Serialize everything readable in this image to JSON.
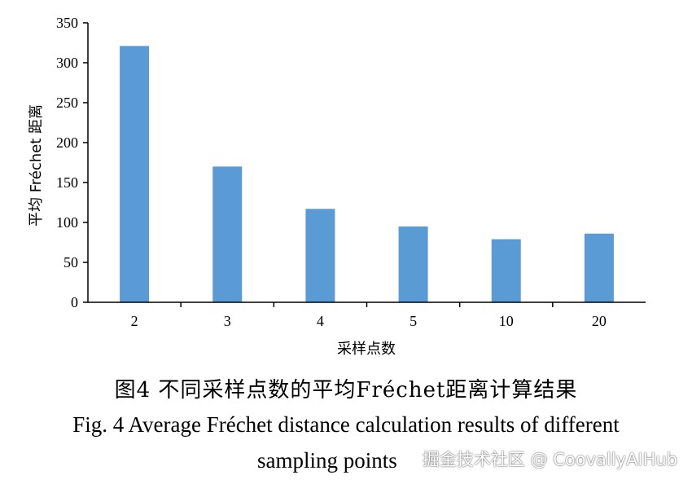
{
  "chart_data": {
    "type": "bar",
    "categories": [
      "2",
      "3",
      "4",
      "5",
      "10",
      "20"
    ],
    "values": [
      321,
      170,
      117,
      95,
      79,
      86
    ],
    "ylabel": "平均 Fréchet 距离",
    "xlabel": "采样点数",
    "ylim": [
      0,
      350
    ],
    "yticks": [
      0,
      50,
      100,
      150,
      200,
      250,
      300,
      350
    ],
    "bar_color": "#5b9bd5",
    "grid": false
  },
  "caption": {
    "cn": "图4  不同采样点数的平均Fréchet距离计算结果",
    "en_line1": "Fig. 4  Average Fréchet distance calculation results of different",
    "en_line2": "sampling points"
  },
  "watermark": "掘金技术社区 @ CoovallyAIHub"
}
